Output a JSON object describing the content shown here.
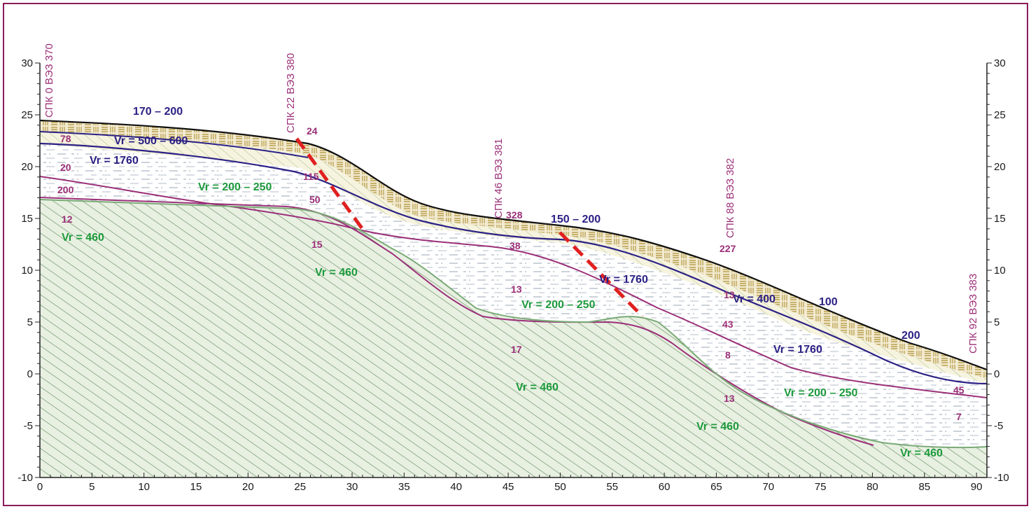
{
  "axes": {
    "x_ticks": [
      "0",
      "5",
      "10",
      "15",
      "20",
      "25",
      "30",
      "35",
      "40",
      "45",
      "50",
      "55",
      "60",
      "65",
      "70",
      "75",
      "80",
      "85",
      "90"
    ],
    "y_ticks": [
      "30",
      "25",
      "20",
      "15",
      "10",
      "5",
      "0",
      "-5",
      "-10"
    ]
  },
  "stations": [
    {
      "id": "s0",
      "text": "СПК 0 ВЭЗ 370"
    },
    {
      "id": "s22",
      "text": "СПК 22 ВЭЗ 380"
    },
    {
      "id": "s46",
      "text": "СПК 46 ВЭЗ 381"
    },
    {
      "id": "s88",
      "text": "СПК 88 ВЭЗ 382"
    },
    {
      "id": "s92",
      "text": "СПК 92 ВЭЗ 383"
    }
  ],
  "velocity_labels": {
    "v170_200": "170 – 200",
    "v500_600": "Vr = 500 – 600",
    "v1760_a": "Vr = 1760",
    "v200_250_a": "Vr = 200 – 250",
    "v460_a": "Vr = 460",
    "v460_b": "Vr = 460",
    "v150_200": "150 – 200",
    "v1760_b": "Vr = 1760",
    "v200_250_b": "Vr = 200 – 250",
    "v400": "Vr = 400",
    "v100": "100",
    "v200": "200",
    "v1760_c": "Vr = 1760",
    "v460_c": "Vr = 460",
    "v200_250_c": "Vr = 200 – 250",
    "v460_d": "Vr = 460",
    "v460_e": "Vr = 460"
  },
  "resistivity_labels": {
    "r78": "78",
    "r20": "20",
    "r200": "200",
    "r12": "12",
    "r24": "24",
    "r115": "115",
    "r50": "50",
    "r15": "15",
    "r328": "328",
    "r38": "38",
    "r13a": "13",
    "r17": "17",
    "r227": "227",
    "r13b": "13",
    "r43": "43",
    "r8": "8",
    "r13c": "13",
    "r45": "45",
    "r7": "7"
  },
  "colors": {
    "frame": "#8a1c5a",
    "ground": "#111111",
    "navy": "#2c2185",
    "purple": "#9b2f78",
    "green_label": "#1e9a3c",
    "green_hatch": "#6f9a6b",
    "bedrock_fill": "#e6efe0",
    "fault": "#e02020",
    "sand": "#b89a4a",
    "tan": "#c59a5a"
  }
}
